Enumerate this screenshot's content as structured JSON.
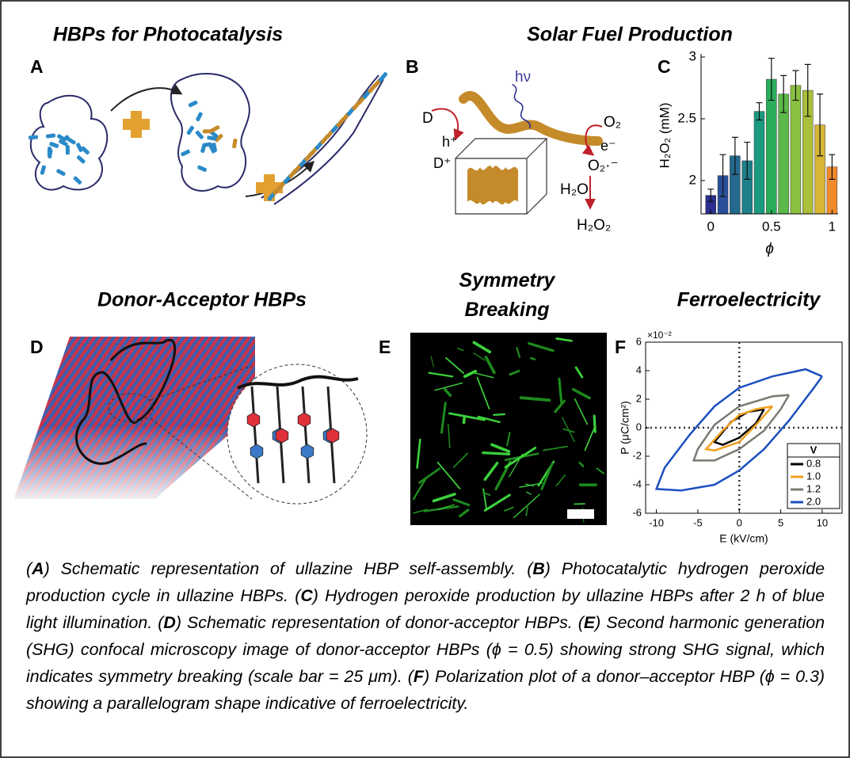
{
  "headings": {
    "a": "HBPs for Photocatalysis",
    "b": "Solar Fuel Production",
    "d": "Donor-Acceptor HBPs",
    "e": "Symmetry Breaking",
    "f": "Ferroelectricity"
  },
  "panel_letters": [
    "A",
    "B",
    "C",
    "D",
    "E",
    "F"
  ],
  "schematic_b": {
    "light": "hν",
    "donor": "D",
    "hole": "h⁺",
    "donor_oxidized": "D⁺",
    "oxygen": "O₂",
    "electron": "e⁻",
    "superoxide": "O₂·⁻",
    "water": "H₂O",
    "peroxide": "H₂O₂"
  },
  "chart_data": [
    {
      "type": "bar",
      "xlabel": "ϕ",
      "ylabel": "H₂O₂ (mM)",
      "x": [
        0,
        0.1,
        0.2,
        0.3,
        0.4,
        0.5,
        0.6,
        0.7,
        0.8,
        0.9,
        1
      ],
      "values": [
        1.88,
        2.04,
        2.2,
        2.16,
        2.56,
        2.82,
        2.7,
        2.77,
        2.73,
        2.45,
        2.11
      ],
      "errors": [
        0.05,
        0.17,
        0.15,
        0.15,
        0.07,
        0.17,
        0.15,
        0.12,
        0.21,
        0.25,
        0.1
      ],
      "colors": [
        "#2b2f8f",
        "#2a4f9a",
        "#24698e",
        "#1d7f8a",
        "#1b9a80",
        "#2aae5a",
        "#5cb848",
        "#8bc140",
        "#aabf3a",
        "#d7b535",
        "#f08a2a"
      ],
      "xlim": [
        -0.08,
        1.05
      ],
      "ylim": [
        1.73,
        3
      ],
      "xticks": [
        0,
        0.5,
        1
      ],
      "yticks": [
        2,
        2.5,
        3
      ]
    },
    {
      "type": "line",
      "xlabel": "E (kV/cm)",
      "ylabel": "P (μC/cm²)",
      "y_multiplier": "×10⁻²",
      "legend_title": "V",
      "legend": "lower right",
      "xlim": [
        -11.3,
        12.4
      ],
      "ylim": [
        -6,
        6
      ],
      "xticks": [
        -10,
        -5,
        0,
        5,
        10
      ],
      "yticks": [
        -6,
        -4,
        -2,
        0,
        2,
        4,
        6
      ],
      "series": [
        {
          "name": "0.8",
          "color": "#000000",
          "x": [
            3,
            1,
            -1,
            -3,
            -2,
            0,
            2,
            3
          ],
          "y": [
            1.3,
            1.1,
            0.4,
            -1.0,
            -1.2,
            -0.7,
            0.3,
            1.3
          ]
        },
        {
          "name": "1.0",
          "color": "#f0a020",
          "x": [
            4,
            2,
            0,
            -2,
            -4,
            -3,
            0,
            2,
            4
          ],
          "y": [
            1.5,
            1.3,
            0.9,
            -0.2,
            -1.5,
            -1.6,
            -1.0,
            0.2,
            1.5
          ]
        },
        {
          "name": "1.2",
          "color": "#7a7a72",
          "x": [
            6,
            4,
            0,
            -3,
            -5,
            -5.5,
            -3,
            0,
            3,
            5,
            6
          ],
          "y": [
            2.3,
            2.2,
            1.5,
            0.2,
            -1.5,
            -2.3,
            -2.3,
            -1.5,
            -0.2,
            1.3,
            2.3
          ]
        },
        {
          "name": "2.0",
          "color": "#1c4fc0",
          "x": [
            10,
            8,
            4,
            0,
            -3,
            -6,
            -9,
            -10,
            -7,
            -3,
            0,
            3,
            6,
            9,
            10
          ],
          "y": [
            3.6,
            4.1,
            3.6,
            2.8,
            1.5,
            -0.5,
            -2.8,
            -4.3,
            -4.4,
            -4.0,
            -3.0,
            -1.5,
            0.5,
            2.8,
            3.6
          ]
        }
      ]
    }
  ],
  "caption": {
    "runs": [
      "(",
      {
        "bold": "A"
      },
      ") Schematic representation of ullazine HBP self-assembly. (",
      {
        "bold": "B"
      },
      ") Photocatalytic hydrogen peroxide production cycle in ullazine HBPs. (",
      {
        "bold": "C"
      },
      ") Hydrogen peroxide production by ullazine HBPs after 2 h of blue light illumination. (",
      {
        "bold": "D"
      },
      ") Schematic representation of donor-acceptor HBPs. (",
      {
        "bold": "E"
      },
      ") Second harmonic generation (SHG) confocal microscopy image of donor-acceptor HBPs (ϕ = 0.5) showing strong SHG signal, which indicates symmetry breaking (scale bar = 25 μm). (",
      {
        "bold": "F"
      },
      ") Polarization plot of a donor–acceptor HBP (ϕ = 0.3) showing a parallelogram shape indicative of ferroelectricity."
    ]
  }
}
